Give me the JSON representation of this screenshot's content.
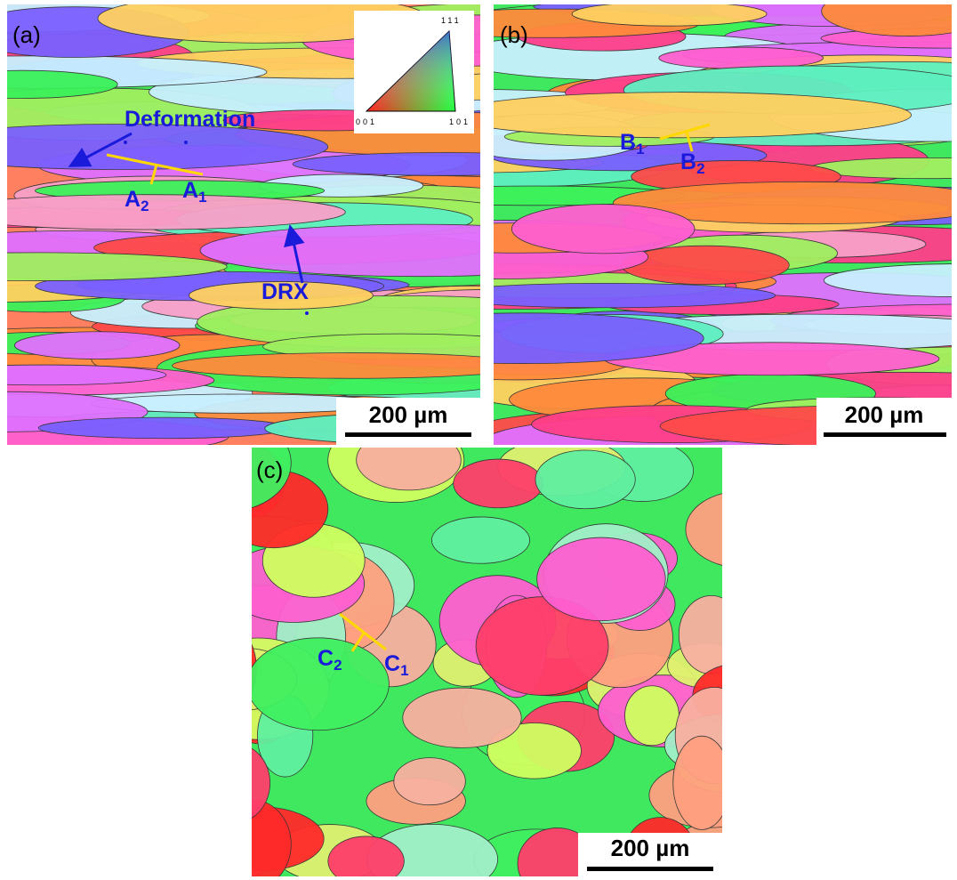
{
  "panels": [
    {
      "label": "(a)",
      "scale_bar": "200 µm",
      "annotations": [
        "Deformation",
        "DRX"
      ],
      "points": [
        {
          "letter": "A",
          "sub": "2"
        },
        {
          "letter": "A",
          "sub": "1"
        }
      ],
      "legend": {
        "top": "111",
        "left": "001",
        "right": "101"
      }
    },
    {
      "label": "(b)",
      "scale_bar": "200 µm",
      "points": [
        {
          "letter": "B",
          "sub": "1"
        },
        {
          "letter": "B",
          "sub": "2"
        }
      ]
    },
    {
      "label": "(c)",
      "scale_bar": "200 µm",
      "points": [
        {
          "letter": "C",
          "sub": "2"
        },
        {
          "letter": "C",
          "sub": "1"
        }
      ]
    }
  ]
}
